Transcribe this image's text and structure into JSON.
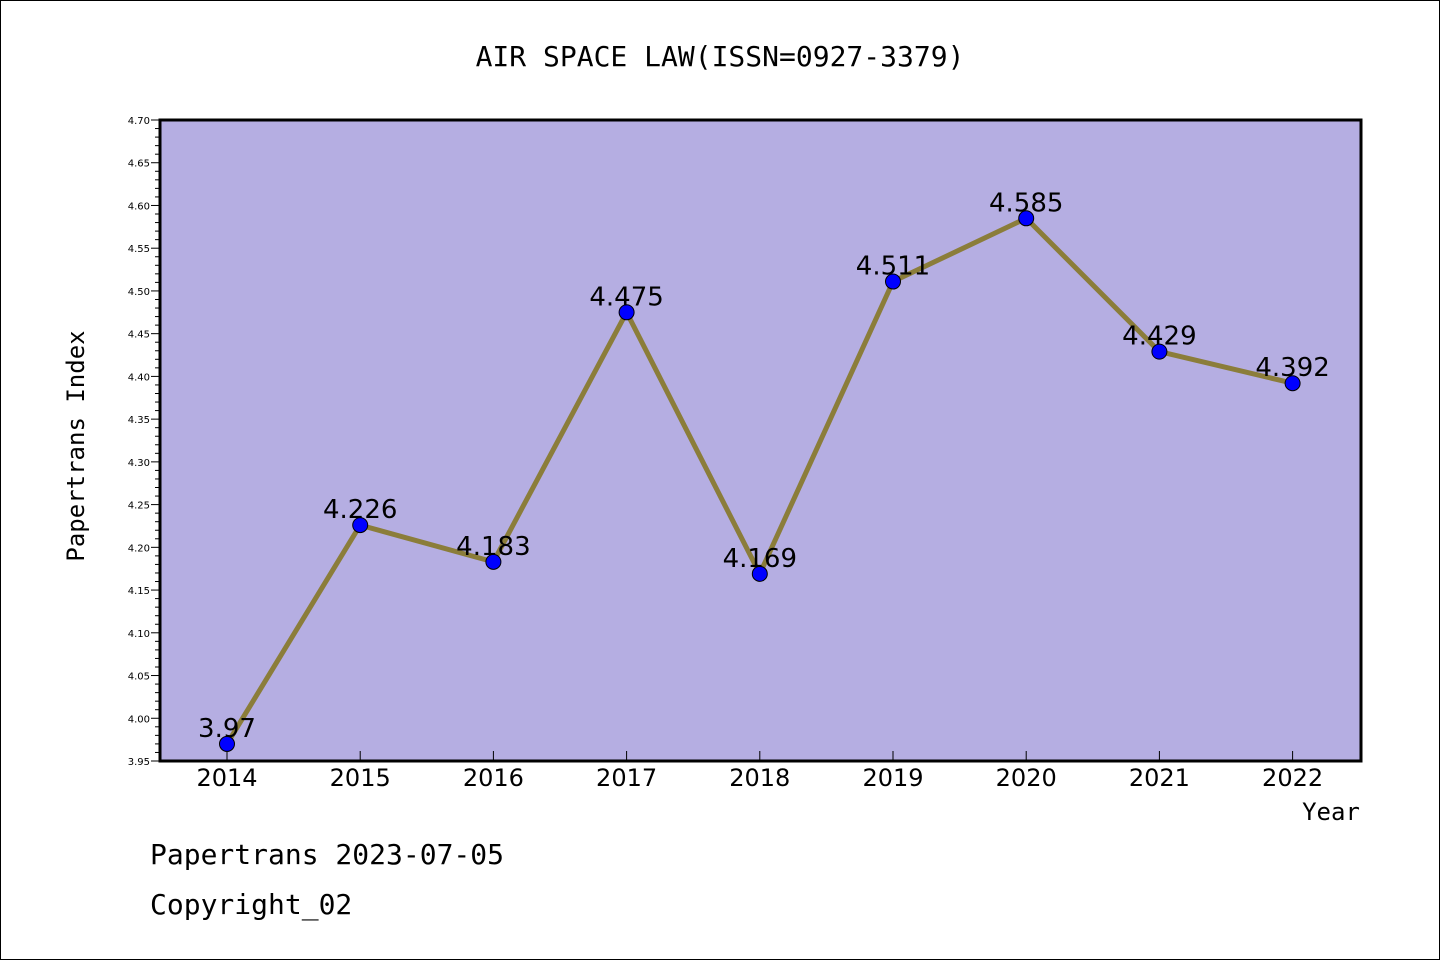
{
  "chart_data": {
    "type": "line",
    "title": "AIR SPACE LAW(ISSN=0927-3379)",
    "xlabel": "Year",
    "ylabel": "Papertrans Index",
    "categories": [
      "2014",
      "2015",
      "2016",
      "2017",
      "2018",
      "2019",
      "2020",
      "2021",
      "2022"
    ],
    "values": [
      3.97,
      4.226,
      4.183,
      4.475,
      4.169,
      4.511,
      4.585,
      4.429,
      4.392
    ],
    "data_labels": [
      "3.97",
      "4.226",
      "4.183",
      "4.475",
      "4.169",
      "4.511",
      "4.585",
      "4.429",
      "4.392"
    ],
    "ylim": [
      3.95,
      4.7
    ],
    "y_ticks": [
      "3.95",
      "4.00",
      "4.05",
      "4.10",
      "4.15",
      "4.20",
      "4.25",
      "4.30",
      "4.35",
      "4.40",
      "4.45",
      "4.50",
      "4.55",
      "4.60",
      "4.65",
      "4.70"
    ],
    "grid": false,
    "legend": "none"
  },
  "footer": {
    "line1": "Papertrans 2023-07-05",
    "line2": "Copyright_02"
  },
  "colors": {
    "plot_background": "#b5aee2",
    "line": "#8b7d3a",
    "marker": "#0000ff"
  }
}
